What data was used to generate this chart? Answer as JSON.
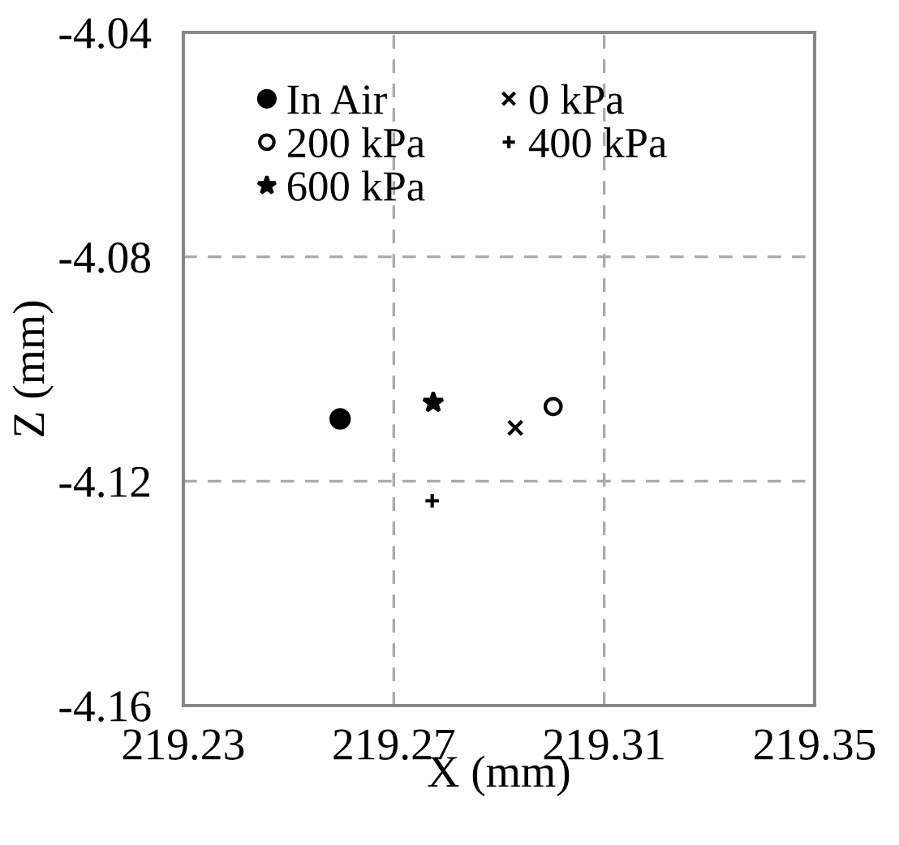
{
  "chart_data": {
    "type": "scatter",
    "xlabel": "X (mm)",
    "ylabel": "Z (mm)",
    "xlim": [
      219.23,
      219.35
    ],
    "xticks": [
      219.23,
      219.27,
      219.31,
      219.35
    ],
    "ylim": [
      -4.16,
      -4.04
    ],
    "yticks": [
      -4.16,
      -4.12,
      -4.08,
      -4.04
    ],
    "grid": true,
    "legend": "top left",
    "series": [
      {
        "name": "In Air",
        "color": "#000000",
        "marker": "circle",
        "x": [
          219.2598
        ],
        "values": [
          -4.1089
        ]
      },
      {
        "name": "0 kPa",
        "color": "#000000",
        "marker": "cross",
        "x": [
          219.2931
        ],
        "values": [
          -4.1105
        ]
      },
      {
        "name": "200 kPa",
        "color": "#000000",
        "marker": "circle_open",
        "x": [
          219.3003
        ],
        "values": [
          -4.1067
        ]
      },
      {
        "name": "400 kPa",
        "color": "#000000",
        "marker": "plus",
        "x": [
          219.2773
        ],
        "values": [
          -4.1235
        ]
      },
      {
        "name": "600 kPa",
        "color": "#000000",
        "marker": "star",
        "x": [
          219.2775
        ],
        "values": [
          -4.106
        ]
      }
    ]
  }
}
